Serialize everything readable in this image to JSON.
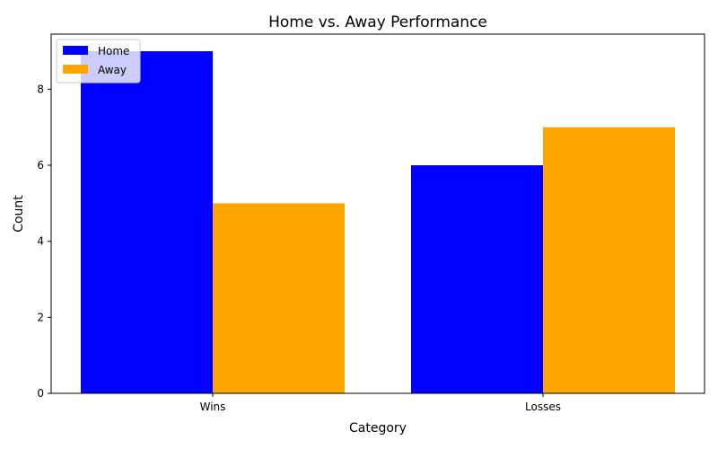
{
  "chart_data": {
    "type": "bar",
    "title": "Home vs. Away Performance",
    "xlabel": "Category",
    "ylabel": "Count",
    "categories": [
      "Wins",
      "Losses"
    ],
    "series": [
      {
        "name": "Home",
        "values": [
          9,
          6
        ],
        "color": "#0000ff"
      },
      {
        "name": "Away",
        "values": [
          5,
          7
        ],
        "color": "#ffa500"
      }
    ],
    "ylim": [
      0,
      9.45
    ],
    "yticks": [
      0,
      2,
      4,
      6,
      8
    ],
    "grid": false,
    "legend_position": "top-left"
  }
}
